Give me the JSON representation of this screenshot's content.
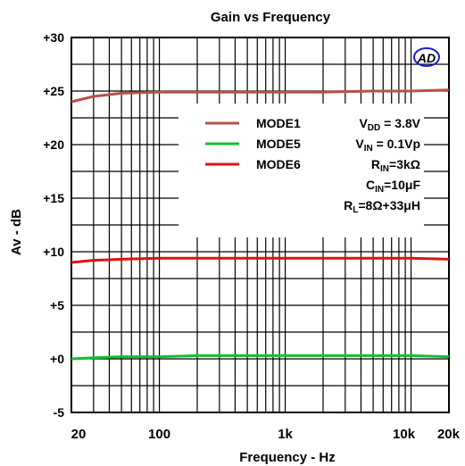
{
  "chart_data": {
    "type": "line",
    "title": "Gain vs  Frequency",
    "xlabel": "Frequency - Hz",
    "ylabel": "Av - dB",
    "x_scale": "log",
    "xlim": [
      20,
      20000
    ],
    "ylim": [
      -5,
      30
    ],
    "x_tick_labels": [
      {
        "value": 20,
        "label": "20"
      },
      {
        "value": 100,
        "label": "100"
      },
      {
        "value": 1000,
        "label": "1k"
      },
      {
        "value": 10000,
        "label": "10k"
      },
      {
        "value": 20000,
        "label": "20k"
      }
    ],
    "y_ticks": [
      -5,
      0,
      5,
      10,
      15,
      20,
      25,
      30
    ],
    "y_tick_labels": [
      "-5",
      "+0",
      "+5",
      "+10",
      "+15",
      "+20",
      "+25",
      "+30"
    ],
    "grid": true,
    "legend_position": "top-right",
    "series": [
      {
        "name": "MODE1",
        "color": "#b5524a",
        "x": [
          20,
          30,
          50,
          100,
          200,
          500,
          1000,
          2000,
          5000,
          10000,
          20000
        ],
        "y": [
          24.0,
          24.5,
          24.8,
          24.9,
          24.9,
          24.9,
          24.9,
          24.9,
          25.0,
          25.0,
          25.1
        ]
      },
      {
        "name": "MODE5",
        "color": "#10c030",
        "x": [
          20,
          30,
          50,
          100,
          200,
          500,
          1000,
          2000,
          5000,
          10000,
          20000
        ],
        "y": [
          0.0,
          0.1,
          0.2,
          0.2,
          0.3,
          0.3,
          0.3,
          0.3,
          0.3,
          0.3,
          0.2
        ]
      },
      {
        "name": "MODE6",
        "color": "#e01010",
        "x": [
          20,
          30,
          50,
          100,
          200,
          500,
          1000,
          2000,
          5000,
          10000,
          20000
        ],
        "y": [
          9.0,
          9.2,
          9.3,
          9.4,
          9.4,
          9.4,
          9.4,
          9.4,
          9.4,
          9.4,
          9.3
        ]
      }
    ],
    "annotations": [
      {
        "main": "V",
        "sub": "DD",
        "rest": " = 3.8V"
      },
      {
        "main": "V",
        "sub": "IN",
        "rest": " = 0.1Vp"
      },
      {
        "main": "R",
        "sub": "IN",
        "rest": "=3kΩ"
      },
      {
        "main": "C",
        "sub": "IN",
        "rest": "=10μF"
      },
      {
        "main": "R",
        "sub": "L",
        "rest": "=8Ω+33μH"
      }
    ],
    "logo_text": "AD"
  }
}
